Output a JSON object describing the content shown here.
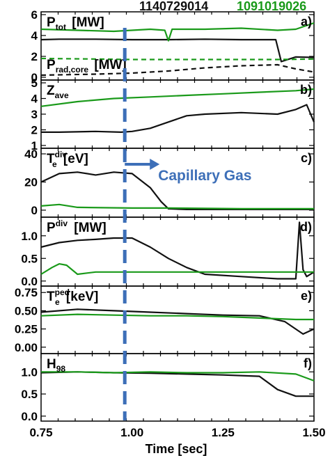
{
  "shots": [
    {
      "label": "1140729014",
      "color": "#111111"
    },
    {
      "label": "1091019026",
      "color": "#1a9a1a"
    }
  ],
  "x_axis": {
    "label": "Time [sec]",
    "range": [
      0.75,
      1.5
    ],
    "ticks": [
      "0.75",
      "1.00",
      "1.25",
      "1.50"
    ]
  },
  "annotation": {
    "text": "Capillary Gas",
    "time": 0.98,
    "color": "#3d6fb8"
  },
  "chart_data": [
    {
      "type": "line",
      "panel": "a)",
      "label_main": "P",
      "label_sub": "tot",
      "label_unit": "[MW]",
      "label2_main": "P",
      "label2_sub": "rad,core",
      "label2_unit": "[MW]",
      "ylim": [
        0,
        6
      ],
      "yticks": [
        "0",
        "2",
        "4",
        "6"
      ],
      "series": [
        {
          "shot": 0,
          "style": "solid",
          "x": [
            0.75,
            0.8,
            0.9,
            1.0,
            1.1,
            1.2,
            1.3,
            1.38,
            1.395,
            1.41,
            1.45,
            1.5
          ],
          "y": [
            3.6,
            3.65,
            3.65,
            3.6,
            3.6,
            3.65,
            3.6,
            3.6,
            3.6,
            1.5,
            1.95,
            1.9
          ]
        },
        {
          "shot": 1,
          "style": "solid",
          "x": [
            0.75,
            0.85,
            0.95,
            1.05,
            1.09,
            1.1,
            1.11,
            1.2,
            1.3,
            1.4,
            1.45,
            1.5
          ],
          "y": [
            4.6,
            4.5,
            4.4,
            4.6,
            4.5,
            3.5,
            4.6,
            4.6,
            4.7,
            4.5,
            4.6,
            5.2
          ]
        },
        {
          "shot": 0,
          "style": "dashed",
          "x": [
            0.75,
            0.9,
            1.0,
            1.1,
            1.2,
            1.3,
            1.4,
            1.45,
            1.5
          ],
          "y": [
            0.2,
            0.3,
            0.4,
            0.6,
            0.9,
            1.1,
            1.2,
            0.8,
            0.5
          ]
        },
        {
          "shot": 1,
          "style": "dashed",
          "x": [
            0.75,
            0.9,
            1.0,
            1.2,
            1.4,
            1.5
          ],
          "y": [
            1.8,
            1.75,
            1.7,
            1.7,
            1.7,
            1.75
          ]
        }
      ]
    },
    {
      "type": "line",
      "panel": "b)",
      "label_main": "Z",
      "label_sub": "ave",
      "label_unit": "",
      "ylim": [
        1,
        5
      ],
      "yticks": [
        "1",
        "2",
        "3",
        "4",
        "5"
      ],
      "series": [
        {
          "shot": 0,
          "style": "solid",
          "x": [
            0.75,
            0.8,
            0.9,
            0.97,
            1.0,
            1.05,
            1.1,
            1.15,
            1.2,
            1.3,
            1.4,
            1.45,
            1.48,
            1.5
          ],
          "y": [
            1.85,
            1.85,
            1.9,
            1.85,
            1.9,
            2.1,
            2.5,
            2.9,
            3.0,
            3.1,
            3.0,
            3.3,
            3.6,
            2.5
          ]
        },
        {
          "shot": 1,
          "style": "solid",
          "x": [
            0.75,
            0.85,
            0.95,
            1.05,
            1.15,
            1.25,
            1.35,
            1.45,
            1.5
          ],
          "y": [
            3.5,
            3.8,
            4.0,
            4.1,
            4.2,
            4.3,
            4.4,
            4.5,
            4.6
          ]
        }
      ]
    },
    {
      "type": "line",
      "panel": "c)",
      "label_main": "T",
      "label_sub": "e",
      "label_sup": "div",
      "label_unit": "[eV]",
      "ylim": [
        -3,
        42
      ],
      "yticks": [
        "0",
        "20",
        "40"
      ],
      "series": [
        {
          "shot": 0,
          "style": "solid",
          "x": [
            0.75,
            0.8,
            0.85,
            0.9,
            0.95,
            1.0,
            1.05,
            1.08,
            1.1,
            1.15,
            1.25,
            1.4,
            1.5
          ],
          "y": [
            20,
            26,
            27,
            25,
            27,
            26,
            16,
            6,
            1,
            0.5,
            0.5,
            0.5,
            0.5
          ]
        },
        {
          "shot": 1,
          "style": "solid",
          "x": [
            0.75,
            0.8,
            0.85,
            1.0,
            1.1,
            1.3,
            1.5
          ],
          "y": [
            3,
            4,
            2,
            1.5,
            1.5,
            1,
            1
          ]
        }
      ]
    },
    {
      "type": "line",
      "panel": "d)",
      "label_main": "P",
      "label_sup": "div",
      "label_unit": "[MW]",
      "ylim": [
        -0.05,
        1.35
      ],
      "yticks": [
        "0.0",
        "0.5",
        "1.0"
      ],
      "series": [
        {
          "shot": 0,
          "style": "solid",
          "x": [
            0.75,
            0.8,
            0.85,
            0.9,
            0.95,
            1.0,
            1.05,
            1.1,
            1.15,
            1.2,
            1.3,
            1.4,
            1.45,
            1.46,
            1.47,
            1.48,
            1.5
          ],
          "y": [
            0.75,
            0.85,
            0.9,
            0.92,
            0.95,
            0.95,
            0.75,
            0.5,
            0.3,
            0.15,
            0.1,
            0.05,
            0.05,
            1.3,
            0.25,
            0.1,
            0.2
          ]
        },
        {
          "shot": 1,
          "style": "solid",
          "x": [
            0.75,
            0.78,
            0.8,
            0.82,
            0.85,
            0.9,
            1.0,
            1.2,
            1.4,
            1.5
          ],
          "y": [
            0.15,
            0.3,
            0.38,
            0.35,
            0.15,
            0.2,
            0.2,
            0.2,
            0.2,
            0.2
          ]
        }
      ]
    },
    {
      "type": "line",
      "panel": "e)",
      "label_main": "T",
      "label_sub": "e",
      "label_sup": "ped",
      "label_unit": "[keV]",
      "ylim": [
        -0.05,
        0.8
      ],
      "yticks": [
        "0.00",
        "0.25",
        "0.50",
        "0.75"
      ],
      "series": [
        {
          "shot": 0,
          "style": "solid",
          "x": [
            0.75,
            0.85,
            0.95,
            1.05,
            1.15,
            1.25,
            1.35,
            1.42,
            1.47,
            1.5
          ],
          "y": [
            0.48,
            0.52,
            0.5,
            0.48,
            0.46,
            0.44,
            0.43,
            0.35,
            0.18,
            0.25
          ]
        },
        {
          "shot": 1,
          "style": "solid",
          "x": [
            0.75,
            0.85,
            0.95,
            1.05,
            1.15,
            1.25,
            1.35,
            1.45,
            1.5
          ],
          "y": [
            0.43,
            0.45,
            0.44,
            0.43,
            0.43,
            0.42,
            0.4,
            0.38,
            0.38
          ]
        }
      ]
    },
    {
      "type": "line",
      "panel": "f)",
      "label_main": "H",
      "label_sub": "98",
      "label_unit": "",
      "ylim": [
        -0.05,
        1.35
      ],
      "yticks": [
        "0.0",
        "0.5",
        "1.0"
      ],
      "series": [
        {
          "shot": 0,
          "style": "solid",
          "x": [
            0.75,
            0.85,
            0.95,
            1.05,
            1.15,
            1.25,
            1.35,
            1.4,
            1.45,
            1.5
          ],
          "y": [
            0.98,
            1.0,
            0.98,
            0.97,
            0.95,
            0.93,
            0.9,
            0.6,
            0.45,
            0.45
          ]
        },
        {
          "shot": 1,
          "style": "solid",
          "x": [
            0.75,
            0.85,
            0.95,
            1.05,
            1.15,
            1.25,
            1.35,
            1.45,
            1.5
          ],
          "y": [
            1.0,
            1.0,
            0.98,
            1.0,
            0.98,
            0.98,
            1.0,
            0.95,
            0.8
          ]
        }
      ]
    }
  ]
}
